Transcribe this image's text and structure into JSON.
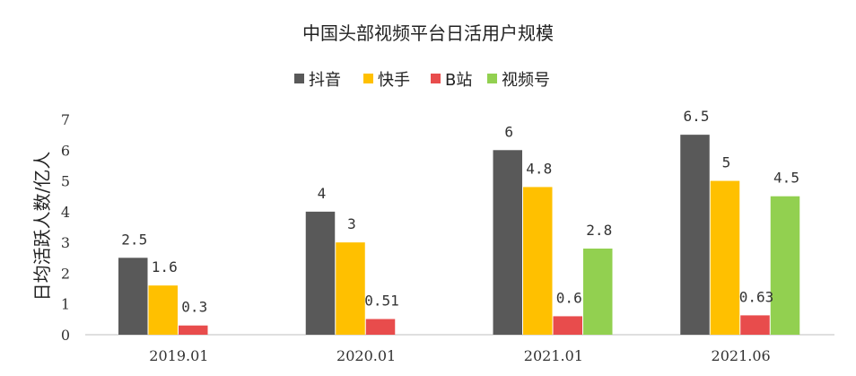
{
  "chart_data": {
    "type": "bar",
    "title": "中国头部视频平台日活用户规模",
    "ylabel": "日均活跃人数/亿人",
    "xlabel": "",
    "categories": [
      "2019.01",
      "2020.01",
      "2021.01",
      "2021.06"
    ],
    "ylim": [
      0,
      7
    ],
    "yticks": [
      0,
      1,
      2,
      3,
      4,
      5,
      6,
      7
    ],
    "grid": false,
    "legend_position": "top",
    "series": [
      {
        "name": "抖音",
        "color": "#595959",
        "values": [
          2.5,
          4,
          6,
          6.5
        ],
        "labels": [
          "2.5",
          "4",
          "6",
          "6.5"
        ]
      },
      {
        "name": "快手",
        "color": "#FFC000",
        "values": [
          1.6,
          3,
          4.8,
          5
        ],
        "labels": [
          "1.6",
          "3",
          "4.8",
          "5"
        ]
      },
      {
        "name": "B站",
        "color": "#E84C4C",
        "values": [
          0.3,
          0.51,
          0.6,
          0.63
        ],
        "labels": [
          "0.3",
          "0.51",
          "0.6",
          "0.63"
        ]
      },
      {
        "name": "视频号",
        "color": "#92D050",
        "values": [
          null,
          null,
          2.8,
          4.5
        ],
        "labels": [
          "",
          "",
          "2.8",
          "4.5"
        ]
      }
    ]
  }
}
